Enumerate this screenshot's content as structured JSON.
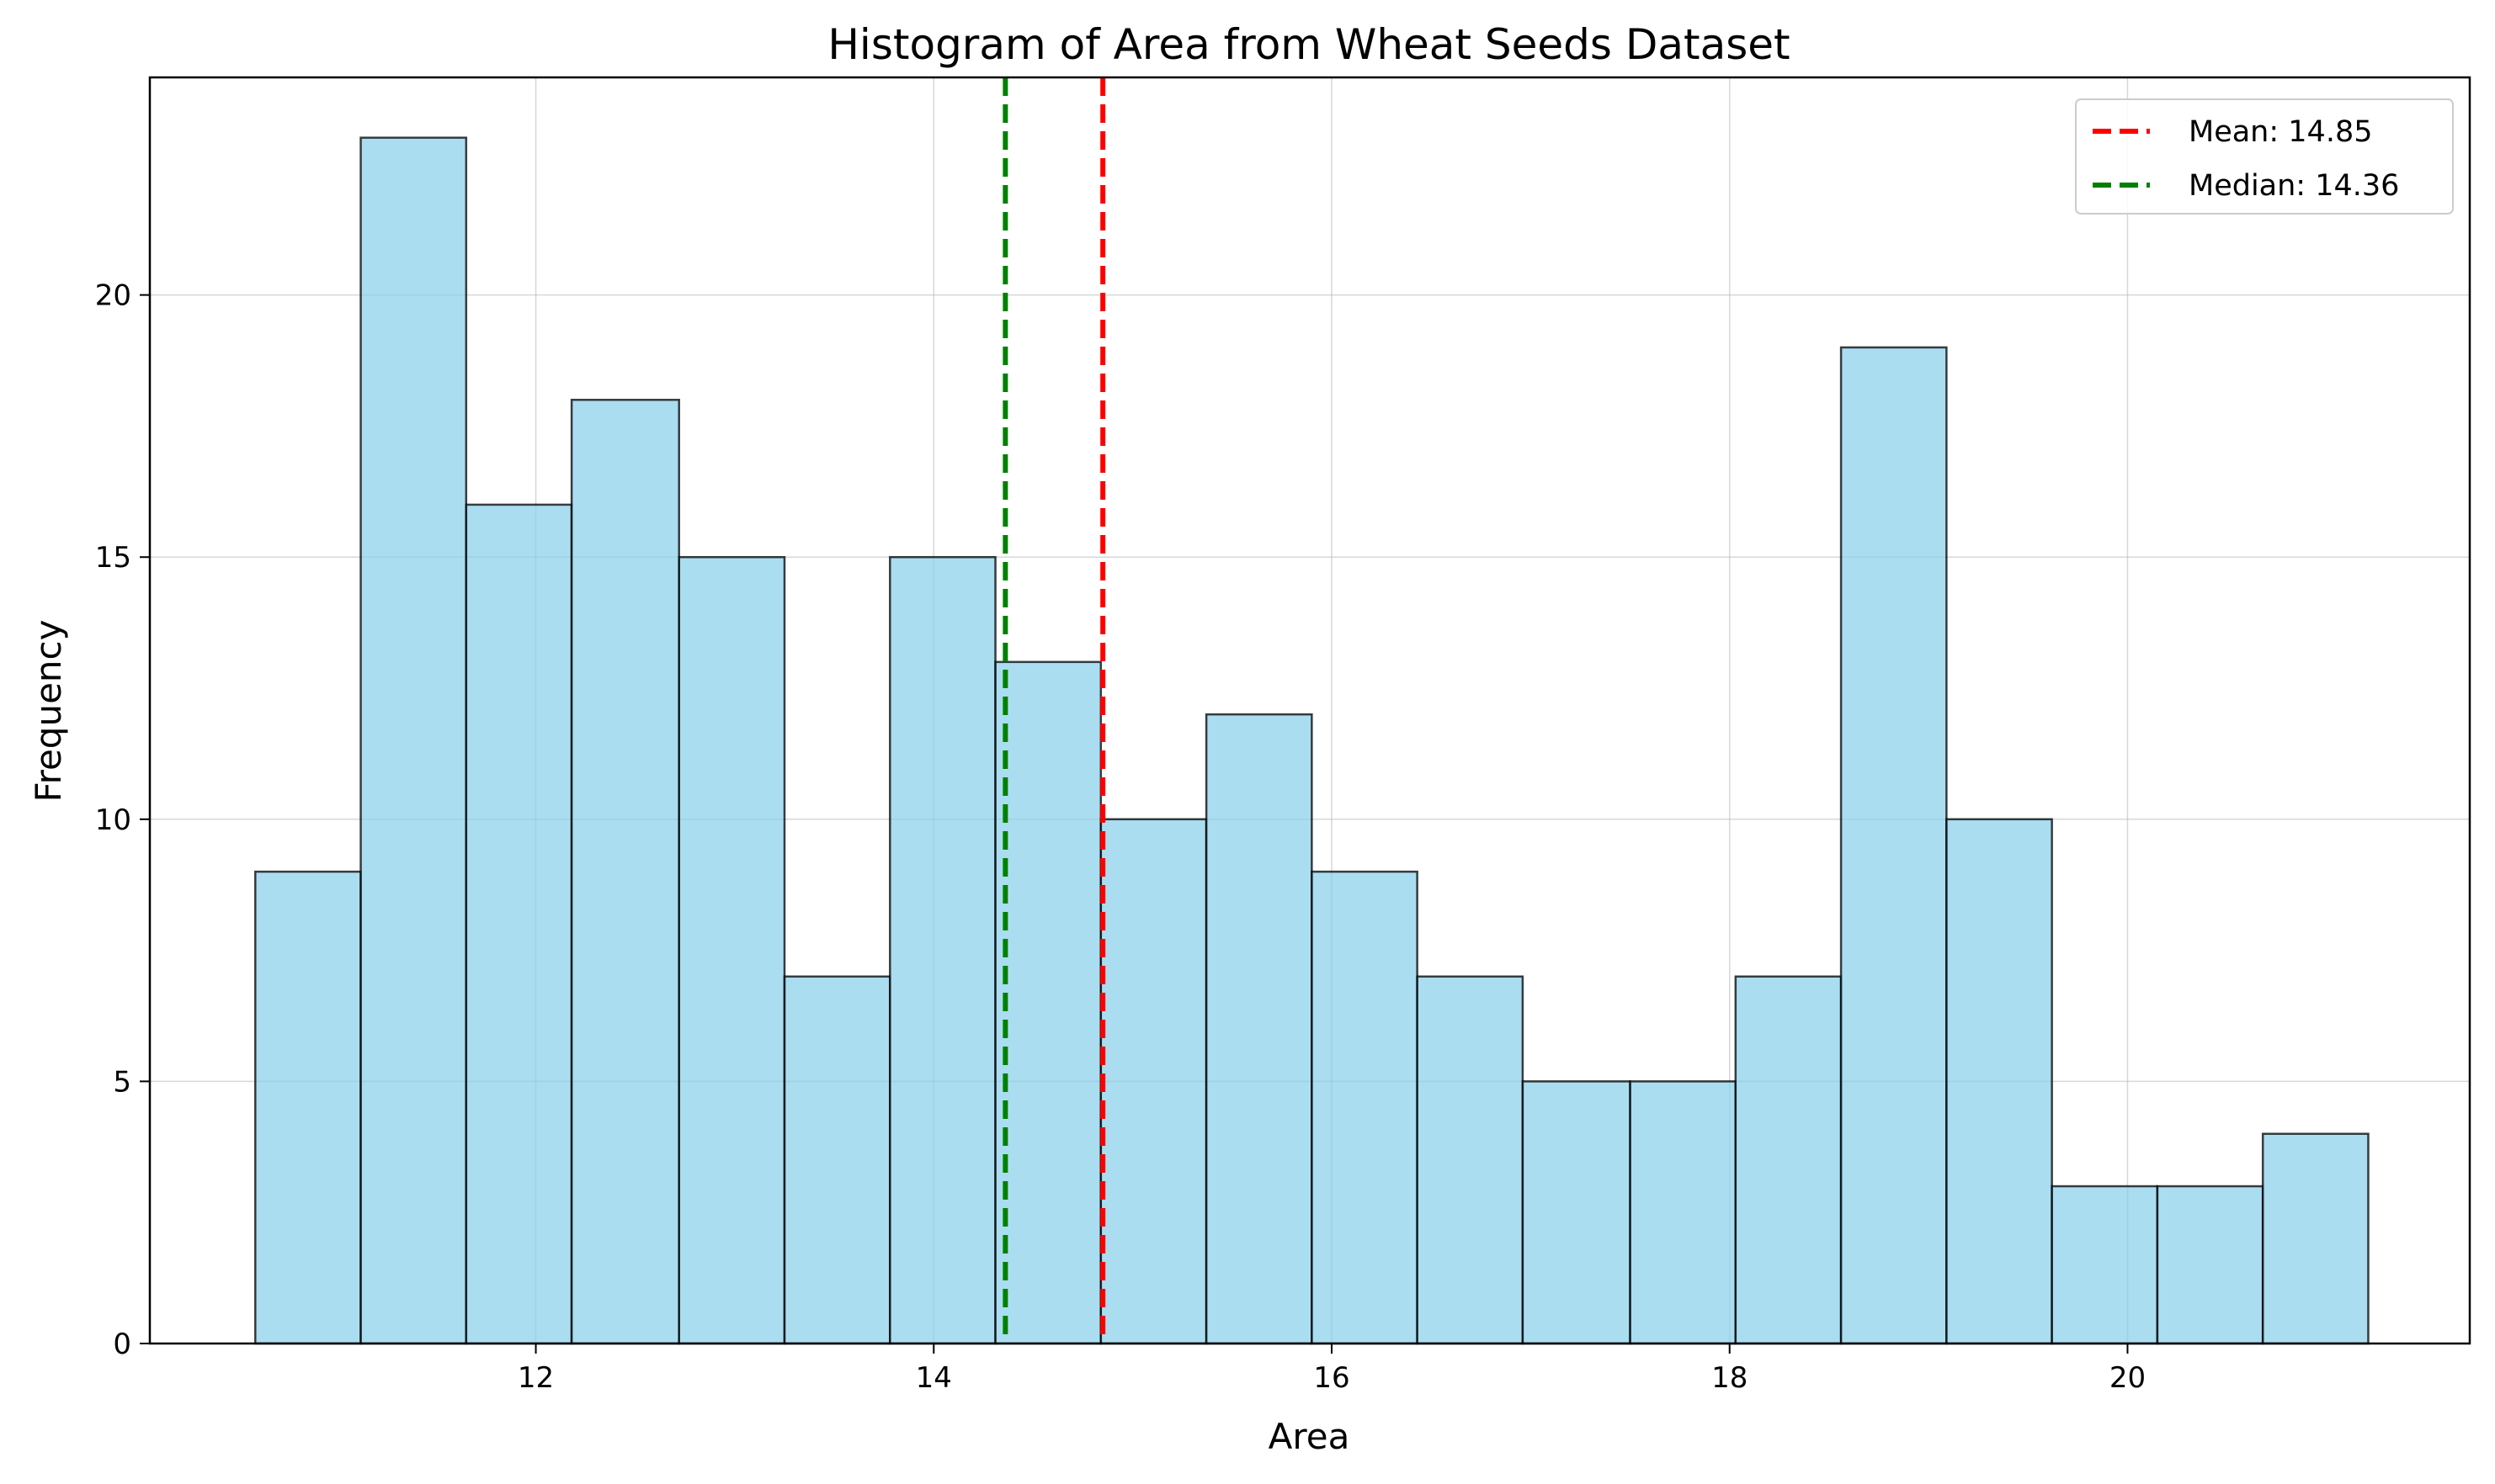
{
  "chart_data": {
    "type": "bar",
    "title": "Histogram of Area from Wheat Seeds Dataset",
    "xlabel": "Area",
    "ylabel": "Frequency",
    "xlim": [
      10.06,
      21.72
    ],
    "ylim": [
      0,
      24.15
    ],
    "bin_edges": [
      10.59,
      11.12,
      11.65,
      12.18,
      12.72,
      13.25,
      13.78,
      14.31,
      14.84,
      15.37,
      15.9,
      16.43,
      16.96,
      17.5,
      18.03,
      18.56,
      19.09,
      19.62,
      20.15,
      20.68,
      21.21
    ],
    "values": [
      9,
      23,
      16,
      18,
      15,
      7,
      15,
      13,
      10,
      12,
      9,
      7,
      5,
      5,
      7,
      19,
      10,
      3,
      3,
      4
    ],
    "x_ticks": [
      12,
      14,
      16,
      18,
      20
    ],
    "x_tick_labels": [
      "12",
      "14",
      "16",
      "18",
      "20"
    ],
    "y_ticks": [
      0,
      5,
      10,
      15,
      20
    ],
    "y_tick_labels": [
      "0",
      "5",
      "10",
      "15",
      "20"
    ],
    "grid": true,
    "legend_position": "top-right",
    "bar_color": "#87ceeb",
    "bar_edge_color": "#000000",
    "reference_lines": [
      {
        "label": "Mean: 14.85",
        "value": 14.85,
        "color": "#ff0000"
      },
      {
        "label": "Median: 14.36",
        "value": 14.36,
        "color": "#008000"
      }
    ]
  }
}
